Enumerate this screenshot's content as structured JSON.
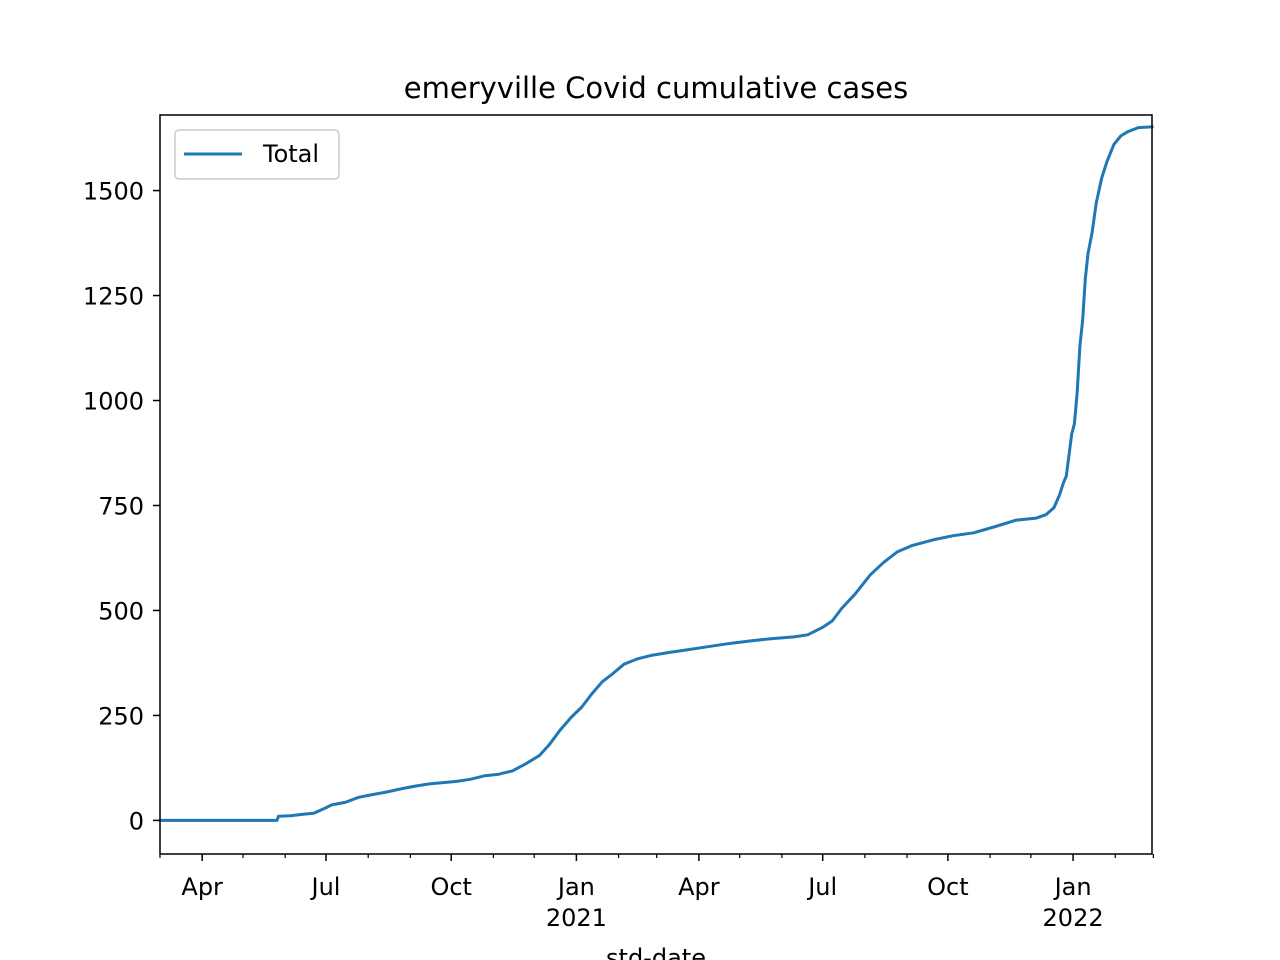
{
  "chart_data": {
    "type": "line",
    "title": "emeryville Covid cumulative cases",
    "xlabel": "std-date",
    "ylabel": "",
    "xlim": [
      "2020-03-01",
      "2022-02-28"
    ],
    "ylim": [
      -80,
      1680
    ],
    "grid": false,
    "legend_position": "top-left",
    "y_ticks": [
      0,
      250,
      500,
      750,
      1000,
      1250,
      1500
    ],
    "x_major_ticks": [
      {
        "date": "2020-04-01",
        "label": "Apr",
        "year_label": ""
      },
      {
        "date": "2020-07-01",
        "label": "Jul",
        "year_label": ""
      },
      {
        "date": "2020-10-01",
        "label": "Oct",
        "year_label": ""
      },
      {
        "date": "2021-01-01",
        "label": "Jan",
        "year_label": "2021"
      },
      {
        "date": "2021-04-01",
        "label": "Apr",
        "year_label": ""
      },
      {
        "date": "2021-07-01",
        "label": "Jul",
        "year_label": ""
      },
      {
        "date": "2021-10-01",
        "label": "Oct",
        "year_label": ""
      },
      {
        "date": "2022-01-01",
        "label": "Jan",
        "year_label": "2022"
      }
    ],
    "x_minor_ticks": [
      "2020-03-01",
      "2020-05-01",
      "2020-06-01",
      "2020-08-01",
      "2020-09-01",
      "2020-11-01",
      "2020-12-01",
      "2021-02-01",
      "2021-03-01",
      "2021-05-01",
      "2021-06-01",
      "2021-08-01",
      "2021-09-01",
      "2021-11-01",
      "2021-12-01",
      "2022-02-01",
      "2022-03-01"
    ],
    "series": [
      {
        "name": "Total",
        "color": "#1f77b4",
        "points": [
          [
            "2020-03-01",
            0
          ],
          [
            "2020-04-15",
            0
          ],
          [
            "2020-05-15",
            0
          ],
          [
            "2020-05-26",
            0
          ],
          [
            "2020-05-27",
            10
          ],
          [
            "2020-06-05",
            11
          ],
          [
            "2020-06-15",
            15
          ],
          [
            "2020-06-22",
            17
          ],
          [
            "2020-07-01",
            30
          ],
          [
            "2020-07-05",
            37
          ],
          [
            "2020-07-15",
            43
          ],
          [
            "2020-07-25",
            55
          ],
          [
            "2020-08-05",
            62
          ],
          [
            "2020-08-15",
            68
          ],
          [
            "2020-08-25",
            75
          ],
          [
            "2020-09-05",
            82
          ],
          [
            "2020-09-15",
            87
          ],
          [
            "2020-09-25",
            90
          ],
          [
            "2020-10-05",
            93
          ],
          [
            "2020-10-15",
            98
          ],
          [
            "2020-10-25",
            106
          ],
          [
            "2020-11-05",
            110
          ],
          [
            "2020-11-15",
            118
          ],
          [
            "2020-11-25",
            135
          ],
          [
            "2020-12-05",
            155
          ],
          [
            "2020-12-12",
            180
          ],
          [
            "2020-12-20",
            215
          ],
          [
            "2020-12-28",
            245
          ],
          [
            "2021-01-05",
            270
          ],
          [
            "2021-01-12",
            300
          ],
          [
            "2021-01-20",
            330
          ],
          [
            "2021-01-28",
            350
          ],
          [
            "2021-02-05",
            372
          ],
          [
            "2021-02-15",
            385
          ],
          [
            "2021-02-25",
            393
          ],
          [
            "2021-03-10",
            400
          ],
          [
            "2021-03-25",
            407
          ],
          [
            "2021-04-10",
            415
          ],
          [
            "2021-04-25",
            422
          ],
          [
            "2021-05-10",
            428
          ],
          [
            "2021-05-25",
            433
          ],
          [
            "2021-06-10",
            437
          ],
          [
            "2021-06-20",
            442
          ],
          [
            "2021-07-01",
            460
          ],
          [
            "2021-07-08",
            475
          ],
          [
            "2021-07-15",
            505
          ],
          [
            "2021-07-25",
            540
          ],
          [
            "2021-08-05",
            585
          ],
          [
            "2021-08-15",
            615
          ],
          [
            "2021-08-25",
            640
          ],
          [
            "2021-09-05",
            655
          ],
          [
            "2021-09-20",
            668
          ],
          [
            "2021-10-05",
            678
          ],
          [
            "2021-10-20",
            685
          ],
          [
            "2021-11-05",
            700
          ],
          [
            "2021-11-20",
            715
          ],
          [
            "2021-12-05",
            720
          ],
          [
            "2021-12-12",
            728
          ],
          [
            "2021-12-18",
            745
          ],
          [
            "2021-12-22",
            775
          ],
          [
            "2021-12-25",
            805
          ],
          [
            "2021-12-27",
            820
          ],
          [
            "2021-12-29",
            870
          ],
          [
            "2021-12-31",
            920
          ],
          [
            "2022-01-02",
            945
          ],
          [
            "2022-01-04",
            1020
          ],
          [
            "2022-01-06",
            1130
          ],
          [
            "2022-01-08",
            1190
          ],
          [
            "2022-01-10",
            1290
          ],
          [
            "2022-01-12",
            1350
          ],
          [
            "2022-01-15",
            1400
          ],
          [
            "2022-01-18",
            1470
          ],
          [
            "2022-01-22",
            1530
          ],
          [
            "2022-01-26",
            1570
          ],
          [
            "2022-01-31",
            1610
          ],
          [
            "2022-02-05",
            1630
          ],
          [
            "2022-02-10",
            1640
          ],
          [
            "2022-02-18",
            1650
          ],
          [
            "2022-02-28",
            1652
          ]
        ]
      }
    ]
  }
}
